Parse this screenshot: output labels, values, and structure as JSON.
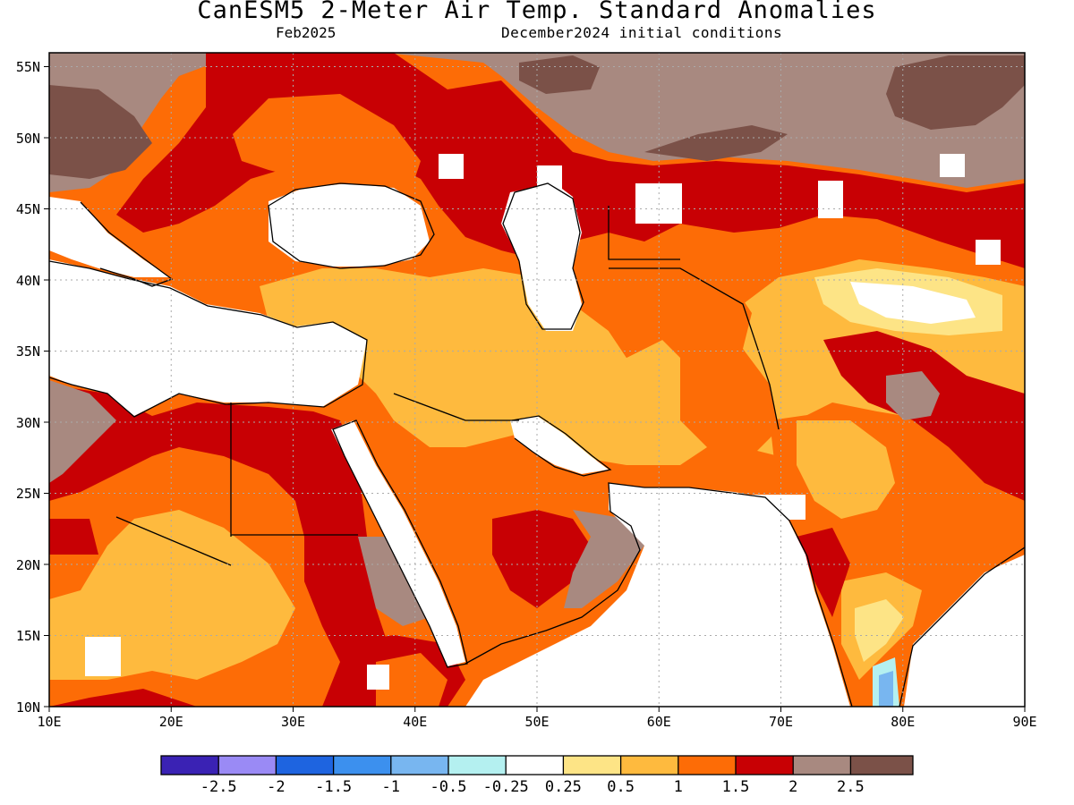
{
  "title": "CanESM5 2-Meter Air Temp. Standard Anomalies",
  "valid_month": "Feb2025",
  "init_conditions": "December2024 initial conditions",
  "map": {
    "lon_range": [
      10,
      90
    ],
    "lat_range": [
      10,
      56
    ],
    "lon_ticks": [
      "10E",
      "20E",
      "30E",
      "40E",
      "50E",
      "60E",
      "70E",
      "80E",
      "90E"
    ],
    "lat_ticks": [
      "10N",
      "15N",
      "20N",
      "25N",
      "30N",
      "35N",
      "40N",
      "45N",
      "50N",
      "55N"
    ]
  },
  "colorbar": {
    "colors": [
      "#3a22b4",
      "#9a8af5",
      "#1e64e0",
      "#3c90ee",
      "#78b6f0",
      "#b4f0f0",
      "#ffffff",
      "#fde486",
      "#feba3e",
      "#fd6c06",
      "#c80004",
      "#a88980",
      "#7b5148"
    ],
    "labels": [
      "-2.5",
      "-2",
      "-1.5",
      "-1",
      "-0.5",
      "-0.25",
      "0.25",
      "0.5",
      "1",
      "1.5",
      "2",
      "2.5"
    ]
  }
}
